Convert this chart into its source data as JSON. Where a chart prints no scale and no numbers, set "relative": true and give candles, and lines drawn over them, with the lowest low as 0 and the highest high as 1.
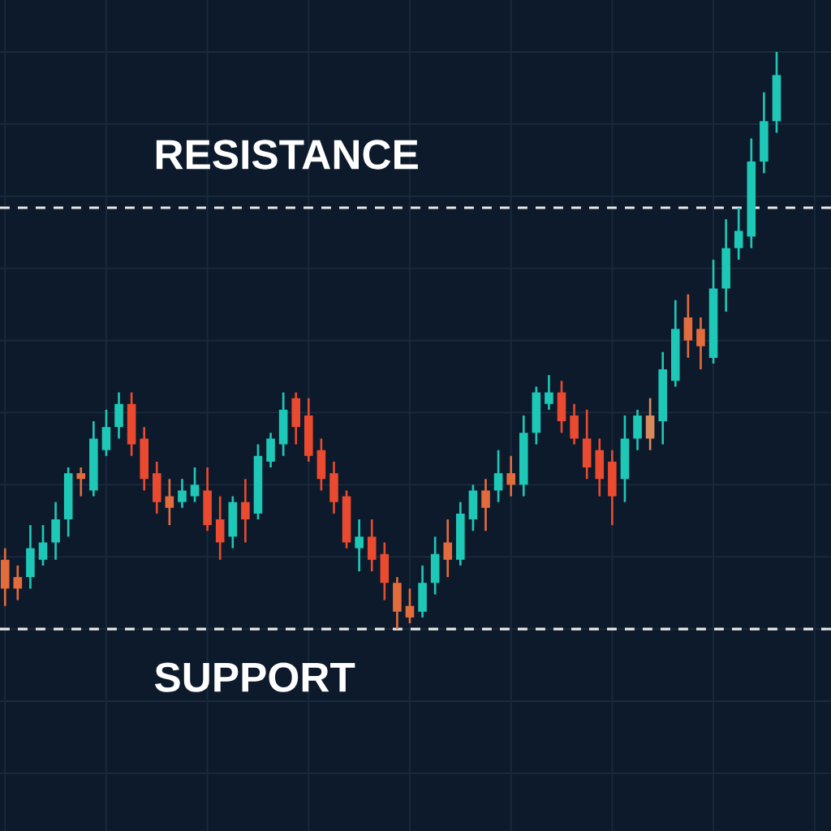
{
  "chart_data": {
    "type": "candlestick",
    "relative": true,
    "categories": [
      null,
      null,
      null,
      null,
      null,
      null,
      null,
      null,
      null,
      null,
      null,
      null,
      null,
      null,
      null,
      null,
      null,
      null,
      null,
      null,
      null,
      null,
      null,
      null,
      null,
      null,
      null,
      null,
      null,
      null,
      null,
      null,
      null,
      null,
      null,
      null,
      null,
      null,
      null,
      null,
      null,
      null,
      null,
      null,
      null,
      null,
      null,
      null,
      null,
      null,
      null,
      null,
      null,
      null,
      null,
      null,
      null,
      null,
      null,
      null,
      null,
      null
    ],
    "ohlc": [
      [
        0.12,
        0.14,
        0.04,
        0.07
      ],
      [
        0.09,
        0.11,
        0.05,
        0.07
      ],
      [
        0.09,
        0.18,
        0.07,
        0.14
      ],
      [
        0.12,
        0.18,
        0.11,
        0.15
      ],
      [
        0.15,
        0.22,
        0.12,
        0.19
      ],
      [
        0.19,
        0.28,
        0.16,
        0.27
      ],
      [
        0.27,
        0.28,
        0.23,
        0.26
      ],
      [
        0.24,
        0.36,
        0.23,
        0.33
      ],
      [
        0.31,
        0.38,
        0.3,
        0.35
      ],
      [
        0.35,
        0.41,
        0.33,
        0.39
      ],
      [
        0.39,
        0.41,
        0.3,
        0.32
      ],
      [
        0.33,
        0.35,
        0.24,
        0.26
      ],
      [
        0.27,
        0.29,
        0.2,
        0.22
      ],
      [
        0.23,
        0.26,
        0.18,
        0.21
      ],
      [
        0.22,
        0.26,
        0.21,
        0.24
      ],
      [
        0.23,
        0.28,
        0.22,
        0.25
      ],
      [
        0.24,
        0.28,
        0.17,
        0.18
      ],
      [
        0.19,
        0.23,
        0.12,
        0.15
      ],
      [
        0.16,
        0.23,
        0.14,
        0.22
      ],
      [
        0.22,
        0.26,
        0.15,
        0.19
      ],
      [
        0.2,
        0.32,
        0.19,
        0.3
      ],
      [
        0.29,
        0.34,
        0.28,
        0.33
      ],
      [
        0.32,
        0.41,
        0.3,
        0.38
      ],
      [
        0.4,
        0.41,
        0.32,
        0.35
      ],
      [
        0.37,
        0.4,
        0.29,
        0.3
      ],
      [
        0.31,
        0.33,
        0.24,
        0.26
      ],
      [
        0.27,
        0.29,
        0.2,
        0.22
      ],
      [
        0.23,
        0.24,
        0.14,
        0.15
      ],
      [
        0.14,
        0.19,
        0.1,
        0.16
      ],
      [
        0.16,
        0.19,
        0.1,
        0.12
      ],
      [
        0.13,
        0.15,
        0.05,
        0.08
      ],
      [
        0.08,
        0.09,
        0.0,
        0.03
      ],
      [
        0.04,
        0.07,
        0.01,
        0.02
      ],
      [
        0.03,
        0.11,
        0.02,
        0.08
      ],
      [
        0.08,
        0.16,
        0.06,
        0.13
      ],
      [
        0.15,
        0.19,
        0.09,
        0.12
      ],
      [
        0.12,
        0.22,
        0.11,
        0.2
      ],
      [
        0.19,
        0.25,
        0.17,
        0.24
      ],
      [
        0.24,
        0.26,
        0.17,
        0.21
      ],
      [
        0.24,
        0.31,
        0.22,
        0.27
      ],
      [
        0.27,
        0.3,
        0.23,
        0.25
      ],
      [
        0.25,
        0.37,
        0.23,
        0.34
      ],
      [
        0.34,
        0.42,
        0.32,
        0.41
      ],
      [
        0.39,
        0.44,
        0.38,
        0.41
      ],
      [
        0.41,
        0.43,
        0.34,
        0.36
      ],
      [
        0.37,
        0.39,
        0.32,
        0.33
      ],
      [
        0.33,
        0.38,
        0.26,
        0.28
      ],
      [
        0.31,
        0.33,
        0.23,
        0.26
      ],
      [
        0.29,
        0.31,
        0.18,
        0.23
      ],
      [
        0.26,
        0.37,
        0.22,
        0.33
      ],
      [
        0.33,
        0.38,
        0.31,
        0.37
      ],
      [
        0.37,
        0.4,
        0.31,
        0.33
      ],
      [
        0.36,
        0.48,
        0.32,
        0.45
      ],
      [
        0.43,
        0.57,
        0.42,
        0.52
      ],
      [
        0.54,
        0.58,
        0.47,
        0.5
      ],
      [
        0.52,
        0.54,
        0.45,
        0.49
      ],
      [
        0.47,
        0.64,
        0.46,
        0.59
      ],
      [
        0.59,
        0.71,
        0.55,
        0.66
      ],
      [
        0.66,
        0.73,
        0.64,
        0.69
      ],
      [
        0.68,
        0.85,
        0.66,
        0.81
      ],
      [
        0.81,
        0.93,
        0.79,
        0.88
      ],
      [
        0.88,
        1.0,
        0.86,
        0.96
      ]
    ],
    "colors": [
      "#e36c3c",
      "#e36c3c",
      "#1ec8b7",
      "#1ec8b7",
      "#1ec8b7",
      "#1ec8b7",
      "#e36c3c",
      "#1ec8b7",
      "#1ec8b7",
      "#1ec8b7",
      "#ea4a2f",
      "#ea4a2f",
      "#ea4a2f",
      "#e36c3c",
      "#1ec8b7",
      "#1ec8b7",
      "#ea4a2f",
      "#ea4a2f",
      "#1ec8b7",
      "#ea4a2f",
      "#1ec8b7",
      "#1ec8b7",
      "#1ec8b7",
      "#ea4a2f",
      "#ea4a2f",
      "#ea4a2f",
      "#ea4a2f",
      "#ea4a2f",
      "#1ec8b7",
      "#ea4a2f",
      "#ea4a2f",
      "#e36c3c",
      "#e36c3c",
      "#1ec8b7",
      "#1ec8b7",
      "#e36c3c",
      "#1ec8b7",
      "#1ec8b7",
      "#e36c3c",
      "#1ec8b7",
      "#e36c3c",
      "#1ec8b7",
      "#1ec8b7",
      "#1ec8b7",
      "#ea4a2f",
      "#ea4a2f",
      "#ea4a2f",
      "#ea4a2f",
      "#ea4a2f",
      "#1ec8b7",
      "#1ec8b7",
      "#d88a5c",
      "#1ec8b7",
      "#1ec8b7",
      "#e36c3c",
      "#e36c3c",
      "#1ec8b7",
      "#1ec8b7",
      "#1ec8b7",
      "#1ec8b7",
      "#1ec8b7",
      "#1ec8b7"
    ],
    "ref_lines": [
      {
        "axis": "y",
        "value": 0.73,
        "label": "RESISTANCE",
        "color": "#e8e8e8",
        "line_style": "dashed"
      },
      {
        "axis": "y",
        "value": 0.0,
        "label": "SUPPORT",
        "color": "#e8e8e8",
        "line_style": "dashed"
      }
    ],
    "grid": true
  }
}
